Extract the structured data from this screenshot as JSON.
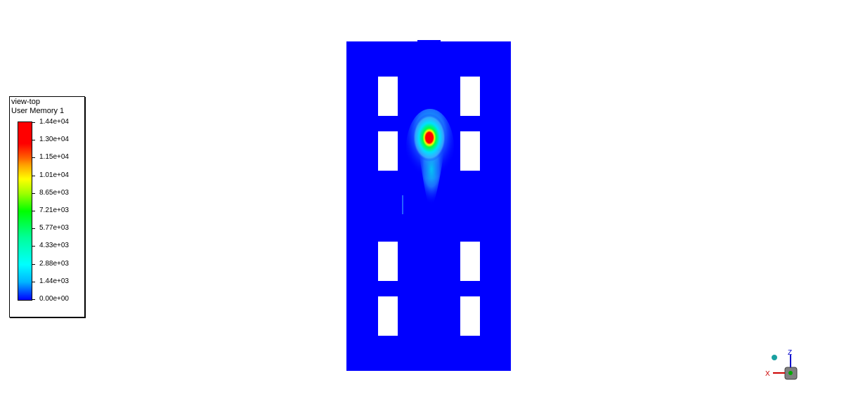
{
  "legend": {
    "view_name": "view-top",
    "variable": "User Memory 1",
    "ticks": [
      "1.44e+04",
      "1.30e+04",
      "1.15e+04",
      "1.01e+04",
      "8.65e+03",
      "7.21e+03",
      "5.77e+03",
      "4.33e+03",
      "2.88e+03",
      "1.44e+03",
      "0.00e+00"
    ],
    "min_value": 0,
    "max_value": 14400,
    "colormap": [
      "#0000ff",
      "#00ffff",
      "#00ff00",
      "#ffff00",
      "#ff0000"
    ]
  },
  "domain": {
    "background_color": "#0000ff",
    "opening_color": "#ffffff"
  },
  "axes_triad": {
    "z_label": "Z",
    "x_label": "X",
    "z_color": "#0000cc",
    "x_color": "#cc0000"
  }
}
